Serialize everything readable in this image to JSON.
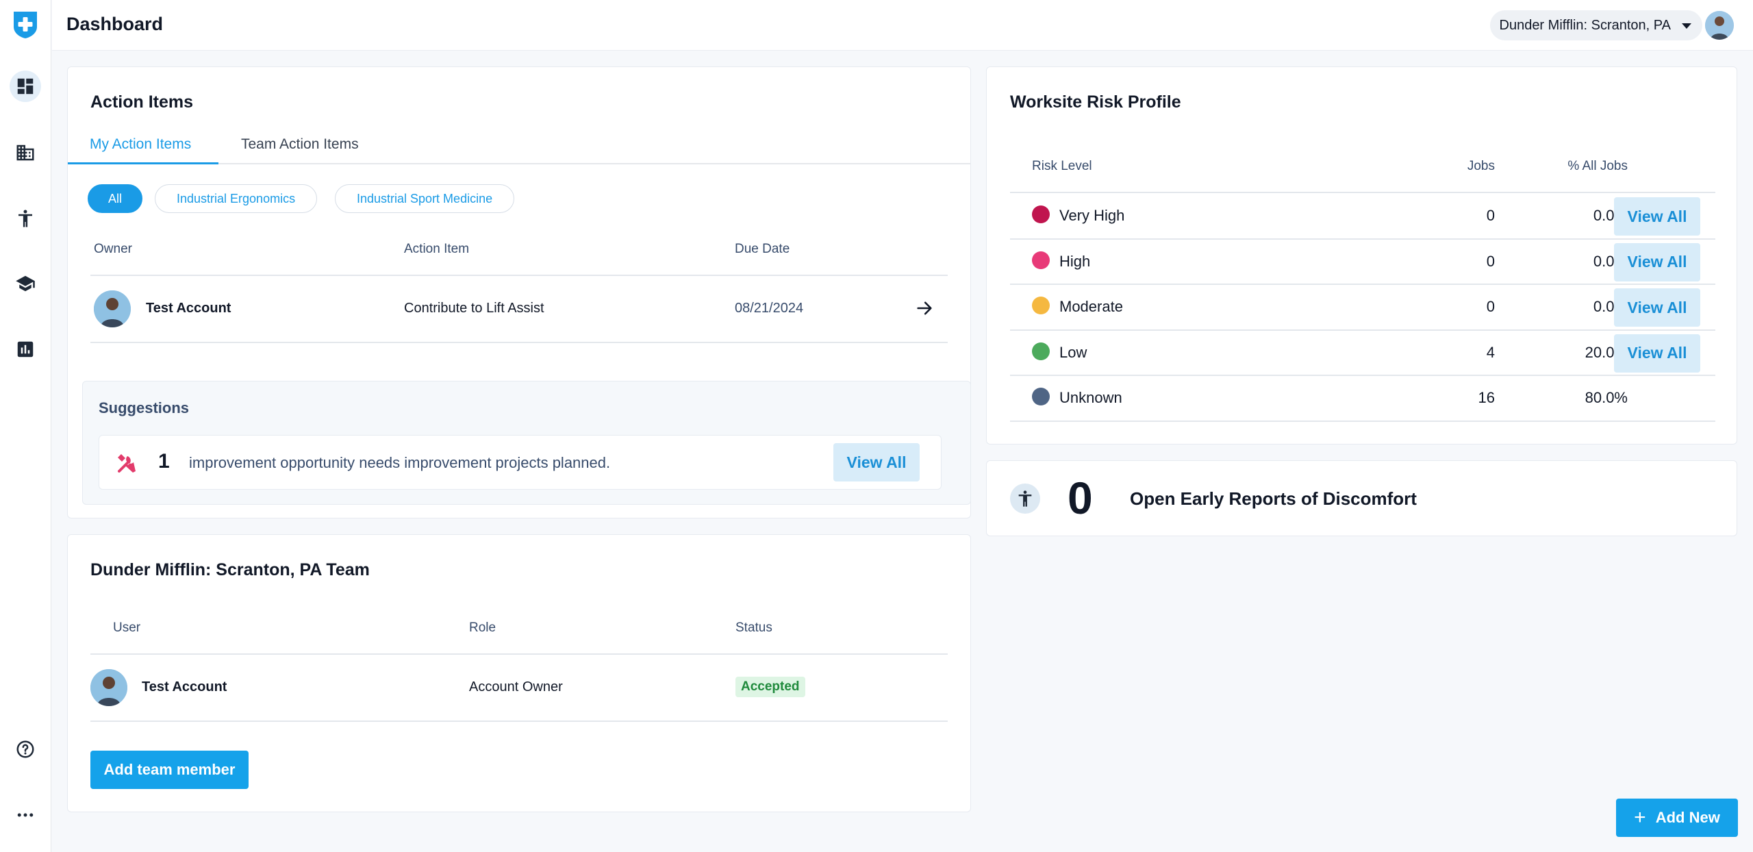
{
  "header": {
    "title": "Dashboard",
    "org_selector": "Dunder Mifflin: Scranton, PA"
  },
  "sidebar": {
    "items": [
      {
        "icon": "dashboard-icon"
      },
      {
        "icon": "building-icon"
      },
      {
        "icon": "accessibility-icon"
      },
      {
        "icon": "school-icon"
      },
      {
        "icon": "chart-icon"
      },
      {
        "icon": "help-icon"
      },
      {
        "icon": "more-icon"
      }
    ]
  },
  "action_items": {
    "title": "Action Items",
    "tabs": [
      "My Action Items",
      "Team Action Items"
    ],
    "filters": [
      "All",
      "Industrial Ergonomics",
      "Industrial Sport Medicine"
    ],
    "columns": [
      "Owner",
      "Action Item",
      "Due Date"
    ],
    "rows": [
      {
        "owner": "Test Account",
        "item": "Contribute to Lift Assist",
        "due": "08/21/2024"
      }
    ],
    "suggestions": {
      "title": "Suggestions",
      "count": "1",
      "text": "improvement opportunity needs improvement projects planned.",
      "button": "View All"
    }
  },
  "team": {
    "title": "Dunder Mifflin: Scranton, PA Team",
    "columns": [
      "User",
      "Role",
      "Status"
    ],
    "rows": [
      {
        "user": "Test Account",
        "role": "Account Owner",
        "status": "Accepted"
      }
    ],
    "add_button": "Add team member"
  },
  "risk_profile": {
    "title": "Worksite Risk Profile",
    "columns": [
      "Risk Level",
      "Jobs",
      "% All Jobs"
    ],
    "rows": [
      {
        "level": "Very High",
        "jobs": "0",
        "pct": "0.0%",
        "color": "#c0154e",
        "button": "View All"
      },
      {
        "level": "High",
        "jobs": "0",
        "pct": "0.0%",
        "color": "#e83a78",
        "button": "View All"
      },
      {
        "level": "Moderate",
        "jobs": "0",
        "pct": "0.0%",
        "color": "#f5b840",
        "button": "View All"
      },
      {
        "level": "Low",
        "jobs": "4",
        "pct": "20.0%",
        "color": "#4caa5c",
        "button": "View All"
      },
      {
        "level": "Unknown",
        "jobs": "16",
        "pct": "80.0%",
        "color": "#4f6585",
        "button": ""
      }
    ]
  },
  "discomfort": {
    "count": "0",
    "label": "Open Early Reports of Discomfort"
  },
  "fab": {
    "label": "Add New"
  },
  "colors": {
    "accent": "#1a9be6",
    "success": "#1f8a3c"
  }
}
